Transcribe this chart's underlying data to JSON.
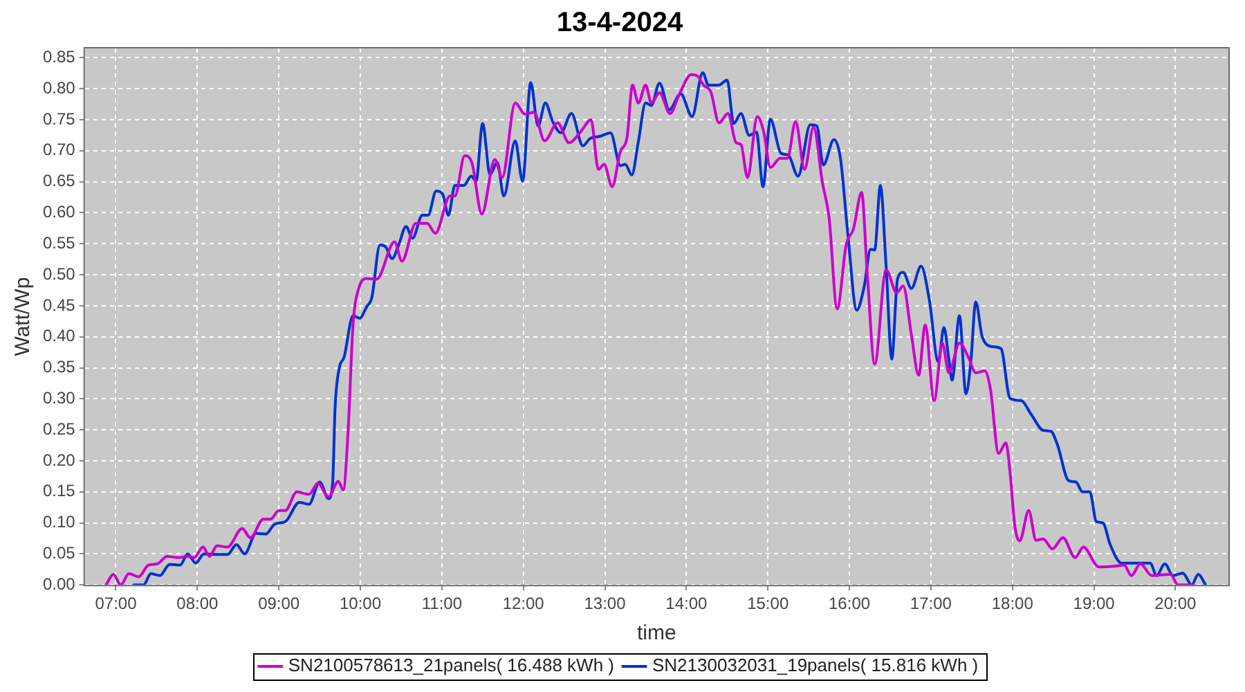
{
  "chart_data": {
    "type": "line",
    "title": "13-4-2024",
    "xlabel": "time",
    "ylabel": "Watt/Wp",
    "xlim": [
      6.62,
      20.65
    ],
    "ylim": [
      0,
      0.865
    ],
    "xticks": [
      {
        "value": 7,
        "label": "07:00"
      },
      {
        "value": 8,
        "label": "08:00"
      },
      {
        "value": 9,
        "label": "09:00"
      },
      {
        "value": 10,
        "label": "10:00"
      },
      {
        "value": 11,
        "label": "11:00"
      },
      {
        "value": 12,
        "label": "12:00"
      },
      {
        "value": 13,
        "label": "13:00"
      },
      {
        "value": 14,
        "label": "14:00"
      },
      {
        "value": 15,
        "label": "15:00"
      },
      {
        "value": 16,
        "label": "16:00"
      },
      {
        "value": 17,
        "label": "17:00"
      },
      {
        "value": 18,
        "label": "18:00"
      },
      {
        "value": 19,
        "label": "19:00"
      },
      {
        "value": 20,
        "label": "20:00"
      }
    ],
    "yticks": [
      {
        "value": 0,
        "label": "0.00"
      },
      {
        "value": 0.05,
        "label": "0.05"
      },
      {
        "value": 0.1,
        "label": "0.10"
      },
      {
        "value": 0.15,
        "label": "0.15"
      },
      {
        "value": 0.2,
        "label": "0.20"
      },
      {
        "value": 0.25,
        "label": "0.25"
      },
      {
        "value": 0.3,
        "label": "0.30"
      },
      {
        "value": 0.35,
        "label": "0.35"
      },
      {
        "value": 0.4,
        "label": "0.40"
      },
      {
        "value": 0.45,
        "label": "0.45"
      },
      {
        "value": 0.5,
        "label": "0.50"
      },
      {
        "value": 0.55,
        "label": "0.55"
      },
      {
        "value": 0.6,
        "label": "0.60"
      },
      {
        "value": 0.65,
        "label": "0.65"
      },
      {
        "value": 0.7,
        "label": "0.70"
      },
      {
        "value": 0.75,
        "label": "0.75"
      },
      {
        "value": 0.8,
        "label": "0.80"
      },
      {
        "value": 0.85,
        "label": "0.85"
      }
    ],
    "grid": true,
    "legend": "bottom",
    "marker": "none",
    "line_style": "solid",
    "series": [
      {
        "name": "SN2100578613_21panels( 16.488 kWh )",
        "color": "#cc00cc",
        "x": [
          6.88,
          6.97,
          7.06,
          7.16,
          7.28,
          7.4,
          7.51,
          7.63,
          7.77,
          7.88,
          7.96,
          8.07,
          8.15,
          8.24,
          8.37,
          8.55,
          8.65,
          8.81,
          8.9,
          9.0,
          9.08,
          9.22,
          9.37,
          9.48,
          9.61,
          9.73,
          9.79,
          9.85,
          9.91,
          9.98,
          10.08,
          10.2,
          10.42,
          10.51,
          10.68,
          10.82,
          10.92,
          11.1,
          11.16,
          11.28,
          11.37,
          11.49,
          11.65,
          11.74,
          11.9,
          12.02,
          12.13,
          12.26,
          12.42,
          12.56,
          12.7,
          12.83,
          12.92,
          12.99,
          13.09,
          13.19,
          13.27,
          13.34,
          13.41,
          13.5,
          13.57,
          13.67,
          13.8,
          13.91,
          14.06,
          14.14,
          14.21,
          14.3,
          14.4,
          14.51,
          14.61,
          14.67,
          14.75,
          14.87,
          14.95,
          15.03,
          15.15,
          15.24,
          15.34,
          15.45,
          15.56,
          15.67,
          15.75,
          15.85,
          15.96,
          16.05,
          16.15,
          16.22,
          16.31,
          16.45,
          16.58,
          16.66,
          16.76,
          16.85,
          16.93,
          17.04,
          17.14,
          17.22,
          17.35,
          17.46,
          17.55,
          17.66,
          17.73,
          17.83,
          17.92,
          17.97,
          18.03,
          18.09,
          18.2,
          18.29,
          18.38,
          18.49,
          18.62,
          18.77,
          18.87,
          19.06,
          19.25,
          19.37,
          19.46,
          19.57,
          19.71,
          19.94,
          20.03,
          20.22
        ],
        "values": [
          0,
          0.017,
          0,
          0.018,
          0.013,
          0.032,
          0.034,
          0.046,
          0.044,
          0.046,
          0.044,
          0.061,
          0.046,
          0.063,
          0.061,
          0.091,
          0.076,
          0.106,
          0.106,
          0.12,
          0.12,
          0.15,
          0.146,
          0.164,
          0.142,
          0.167,
          0.153,
          0.249,
          0.419,
          0.478,
          0.494,
          0.493,
          0.553,
          0.522,
          0.583,
          0.583,
          0.567,
          0.627,
          0.627,
          0.692,
          0.68,
          0.598,
          0.686,
          0.657,
          0.777,
          0.759,
          0.762,
          0.716,
          0.745,
          0.713,
          0.73,
          0.75,
          0.67,
          0.678,
          0.642,
          0.699,
          0.72,
          0.806,
          0.777,
          0.806,
          0.777,
          0.794,
          0.76,
          0.79,
          0.823,
          0.82,
          0.806,
          0.795,
          0.745,
          0.76,
          0.713,
          0.71,
          0.657,
          0.755,
          0.73,
          0.673,
          0.688,
          0.688,
          0.747,
          0.67,
          0.738,
          0.648,
          0.593,
          0.445,
          0.548,
          0.574,
          0.633,
          0.5,
          0.356,
          0.508,
          0.471,
          0.482,
          0.404,
          0.338,
          0.419,
          0.297,
          0.39,
          0.342,
          0.39,
          0.367,
          0.342,
          0.345,
          0.316,
          0.212,
          0.229,
          0.183,
          0.095,
          0.071,
          0.12,
          0.072,
          0.074,
          0.058,
          0.076,
          0.044,
          0.061,
          0.029,
          0.03,
          0.032,
          0.015,
          0.034,
          0.015,
          0.017,
          0,
          0
        ]
      },
      {
        "name": "SN2130032031_19panels( 15.816 kWh )",
        "color": "#0033cc",
        "x": [
          7.22,
          7.34,
          7.43,
          7.54,
          7.66,
          7.79,
          7.88,
          7.98,
          8.08,
          8.22,
          8.37,
          8.48,
          8.58,
          8.72,
          8.84,
          8.95,
          9.08,
          9.25,
          9.37,
          9.5,
          9.61,
          9.66,
          9.69,
          9.74,
          9.8,
          9.91,
          9.99,
          10.08,
          10.14,
          10.24,
          10.31,
          10.39,
          10.47,
          10.56,
          10.64,
          10.76,
          10.83,
          10.93,
          11.01,
          11.08,
          11.16,
          11.27,
          11.36,
          11.42,
          11.5,
          11.59,
          11.68,
          11.76,
          11.9,
          11.99,
          12.09,
          12.18,
          12.27,
          12.36,
          12.46,
          12.59,
          12.73,
          12.82,
          12.93,
          13.07,
          13.19,
          13.25,
          13.33,
          13.41,
          13.5,
          13.57,
          13.67,
          13.79,
          13.93,
          14.07,
          14.2,
          14.27,
          14.4,
          14.5,
          14.58,
          14.67,
          14.77,
          14.86,
          14.94,
          15.03,
          15.16,
          15.25,
          15.37,
          15.52,
          15.6,
          15.68,
          15.81,
          15.89,
          15.98,
          16.09,
          16.18,
          16.26,
          16.31,
          16.38,
          16.45,
          16.52,
          16.59,
          16.66,
          16.76,
          16.88,
          16.98,
          17.09,
          17.16,
          17.22,
          17.26,
          17.35,
          17.43,
          17.49,
          17.55,
          17.63,
          17.76,
          17.86,
          17.97,
          18.11,
          18.23,
          18.38,
          18.47,
          18.55,
          18.69,
          18.78,
          18.86,
          18.95,
          19.03,
          19.11,
          19.2,
          19.34,
          19.52,
          19.69,
          19.77,
          19.87,
          19.97,
          20.09,
          20.2,
          20.28,
          20.37
        ],
        "values": [
          0,
          0,
          0.018,
          0.015,
          0.033,
          0.032,
          0.05,
          0.035,
          0.05,
          0.049,
          0.049,
          0.065,
          0.05,
          0.083,
          0.082,
          0.098,
          0.102,
          0.133,
          0.13,
          0.166,
          0.139,
          0.164,
          0.286,
          0.349,
          0.367,
          0.434,
          0.43,
          0.449,
          0.463,
          0.548,
          0.545,
          0.526,
          0.548,
          0.578,
          0.559,
          0.596,
          0.596,
          0.635,
          0.63,
          0.596,
          0.644,
          0.644,
          0.659,
          0.651,
          0.744,
          0.662,
          0.681,
          0.627,
          0.716,
          0.651,
          0.81,
          0.74,
          0.777,
          0.747,
          0.729,
          0.76,
          0.708,
          0.72,
          0.723,
          0.729,
          0.676,
          0.678,
          0.661,
          0.714,
          0.777,
          0.773,
          0.809,
          0.766,
          0.792,
          0.755,
          0.826,
          0.806,
          0.806,
          0.814,
          0.744,
          0.76,
          0.725,
          0.73,
          0.642,
          0.751,
          0.696,
          0.693,
          0.659,
          0.742,
          0.74,
          0.677,
          0.718,
          0.688,
          0.567,
          0.443,
          0.48,
          0.541,
          0.54,
          0.644,
          0.515,
          0.364,
          0.493,
          0.504,
          0.478,
          0.514,
          0.46,
          0.36,
          0.415,
          0.364,
          0.33,
          0.434,
          0.308,
          0.36,
          0.456,
          0.4,
          0.384,
          0.381,
          0.301,
          0.297,
          0.275,
          0.249,
          0.248,
          0.227,
          0.168,
          0.166,
          0.15,
          0.15,
          0.102,
          0.1,
          0.065,
          0.035,
          0.035,
          0.035,
          0.015,
          0.034,
          0.015,
          0.019,
          0,
          0.017,
          0
        ]
      }
    ]
  }
}
